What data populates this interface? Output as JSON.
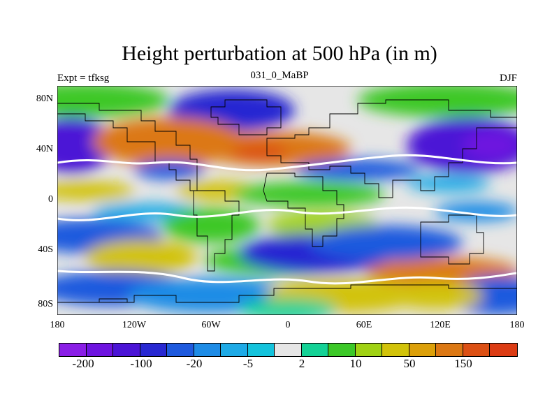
{
  "title": "Height perturbation at 500 hPa (in m)",
  "left_string": "Expt = tfksg",
  "center_string": "031_0_MaBP",
  "right_string": "DJF",
  "y_ticks": [
    "80N",
    "40N",
    "0",
    "40S",
    "80S"
  ],
  "x_ticks": [
    "180",
    "120W",
    "60W",
    "0",
    "60E",
    "120E",
    "180"
  ],
  "colorbar": {
    "colors": [
      "#8a1ee6",
      "#6e14e0",
      "#4b14d6",
      "#2828d2",
      "#1e5ade",
      "#1e8ce6",
      "#1eaae6",
      "#14c3dc",
      "#e6e6e6",
      "#14d296",
      "#3cc828",
      "#a0d214",
      "#d2c30a",
      "#dca00a",
      "#dc7814",
      "#dc5014",
      "#dc3c14"
    ],
    "labels": [
      "-200",
      "-100",
      "-20",
      "-5",
      "2",
      "10",
      "50",
      "150"
    ]
  }
}
